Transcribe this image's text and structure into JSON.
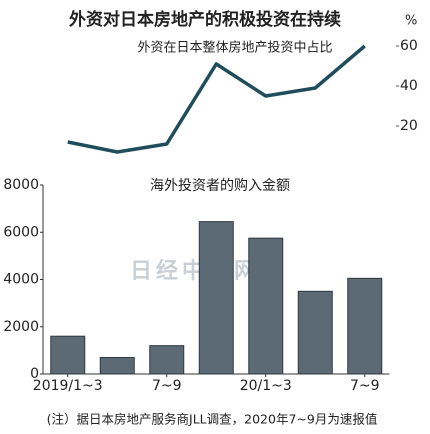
{
  "title": "外资对日本房地产的积极投资在持续",
  "note": "(注）据日本房地产服务商JLL调查，2020年7~9月为速报值",
  "watermark": "日经中文网",
  "chart_data": [
    {
      "type": "line",
      "title": "外资在日本整体房地产投资中占比",
      "y_axis_label": "%",
      "values": [
        12,
        7,
        11,
        51,
        35,
        39,
        60
      ],
      "color": "#1f4d5c",
      "ylim": [
        0,
        60
      ],
      "yticks": [
        20,
        40,
        60
      ]
    },
    {
      "type": "bar",
      "title": "海外投资者的购入金额",
      "categories": [
        "2019/1~3",
        null,
        "7~9",
        null,
        "20/1~3",
        null,
        "7~9"
      ],
      "values": [
        1600,
        700,
        1200,
        6450,
        5750,
        3500,
        4050
      ],
      "color": "#5b6a74",
      "ylim": [
        0,
        8000
      ],
      "yticks": [
        0,
        2000,
        4000,
        6000,
        8000
      ]
    }
  ]
}
